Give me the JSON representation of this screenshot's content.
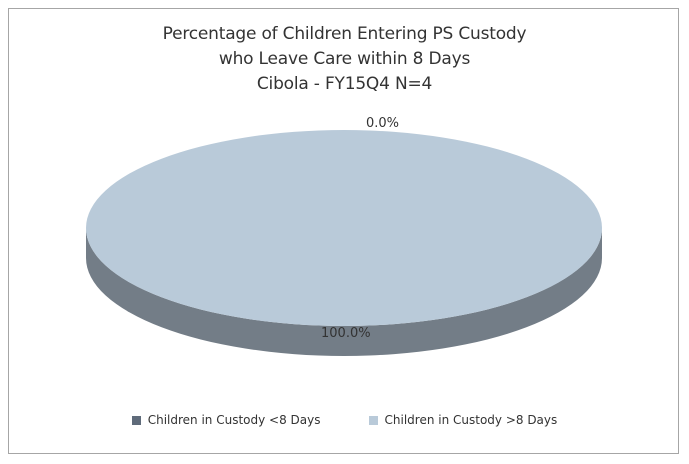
{
  "chart_data": {
    "type": "pie",
    "title_lines": [
      "Percentage of Children Entering PS Custody",
      "who Leave Care within 8 Days",
      "Cibola - FY15Q4    N=4"
    ],
    "slices": [
      {
        "name": "Children in Custody <8 Days",
        "value": 0.0,
        "label": "0.0%",
        "color": "#5f6b7a"
      },
      {
        "name": "Children in Custody >8 Days",
        "value": 100.0,
        "label": "100.0%",
        "color": "#b9cad9"
      }
    ],
    "legend_position": "bottom",
    "style": "3d"
  }
}
